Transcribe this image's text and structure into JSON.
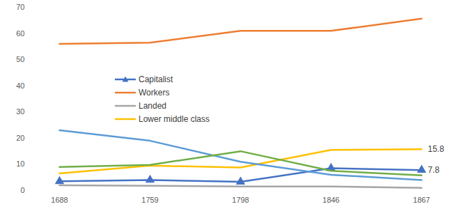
{
  "chart_data": {
    "type": "line",
    "categories": [
      "1688",
      "1759",
      "1798",
      "1846",
      "1867"
    ],
    "series": [
      {
        "name": "Capitalist",
        "color": "#4472c4",
        "marker": "triangle",
        "values": [
          3.5,
          4,
          3.3,
          8.5,
          7.8
        ],
        "value_labels": [
          null,
          null,
          null,
          null,
          "7.8"
        ]
      },
      {
        "name": "Workers",
        "color": "#ed7d31",
        "values": [
          56,
          56.5,
          61,
          61,
          65.7
        ]
      },
      {
        "name": "Landed",
        "color": "#a5a5a5",
        "values": [
          2,
          1.8,
          1.5,
          1.5,
          1
        ]
      },
      {
        "name": "Lower middle class",
        "color": "#ffc000",
        "values": [
          6.5,
          9.5,
          8.8,
          15.5,
          15.8
        ],
        "value_labels": [
          null,
          null,
          null,
          null,
          "15.8"
        ]
      },
      {
        "color": "#5b9bd5",
        "values": [
          23,
          19,
          11,
          6,
          4
        ]
      },
      {
        "color": "#70ad47",
        "values": [
          9,
          9.8,
          15,
          7.5,
          5.8
        ]
      }
    ],
    "ylim": [
      0,
      70
    ],
    "yticks": [
      0,
      10,
      20,
      30,
      40,
      50,
      60,
      70
    ],
    "grid": false,
    "legend": "upper left"
  }
}
